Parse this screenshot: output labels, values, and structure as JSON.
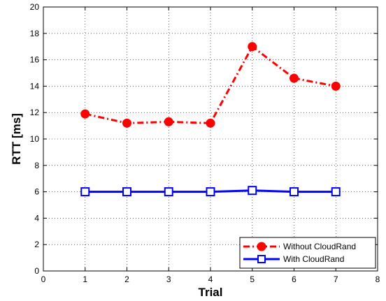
{
  "chart_data": {
    "type": "line",
    "title": "",
    "xlabel": "Trial",
    "ylabel": "RTT [ms]",
    "xlim": [
      0,
      8
    ],
    "ylim": [
      0,
      20
    ],
    "xticks": [
      0,
      1,
      2,
      3,
      4,
      5,
      6,
      7,
      8
    ],
    "yticks": [
      0,
      2,
      4,
      6,
      8,
      10,
      12,
      14,
      16,
      18,
      20
    ],
    "grid": true,
    "legend_position": "bottom-right",
    "x": [
      1,
      2,
      3,
      4,
      5,
      6,
      7
    ],
    "series": [
      {
        "name": "Without CloudRand",
        "values": [
          11.9,
          11.2,
          11.3,
          11.2,
          17.0,
          14.6,
          14.0
        ],
        "color": "#ff0000",
        "line_style": "dash-dot",
        "marker": "filled-circle"
      },
      {
        "name": "With CloudRand",
        "values": [
          6.0,
          6.0,
          6.0,
          6.0,
          6.1,
          6.0,
          6.0
        ],
        "color": "#0000ff",
        "line_style": "solid",
        "marker": "open-square"
      }
    ]
  }
}
